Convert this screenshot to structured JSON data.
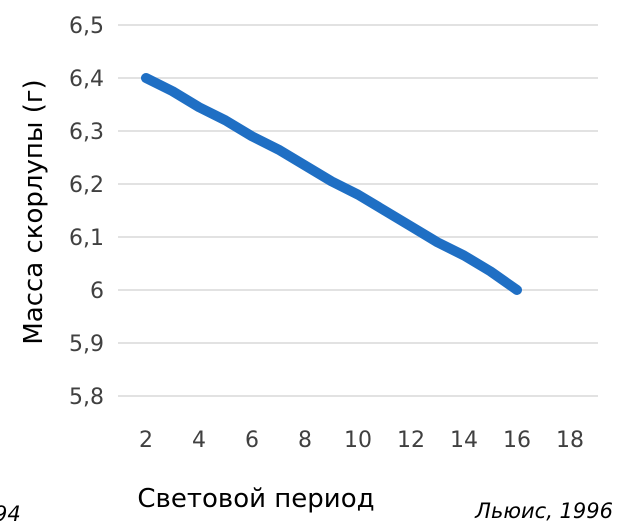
{
  "chart_data": {
    "type": "line",
    "title": "",
    "xlabel": "Световой период",
    "ylabel": "Масса скорлупы (г)",
    "x_ticks": [
      "2",
      "4",
      "6",
      "8",
      "10",
      "12",
      "14",
      "16",
      "18"
    ],
    "y_ticks": [
      "5,8",
      "5,9",
      "6",
      "6,1",
      "6,2",
      "6,3",
      "6,4",
      "6,5"
    ],
    "xlim": [
      2,
      18
    ],
    "ylim": [
      5.8,
      6.5
    ],
    "grid": "horizontal",
    "legend": "none",
    "series": [
      {
        "color": "#1f6fc4",
        "x": [
          2,
          3,
          4,
          5,
          6,
          7,
          8,
          9,
          10,
          11,
          12,
          13,
          14,
          15,
          16
        ],
        "y": [
          6.4,
          6.375,
          6.345,
          6.32,
          6.29,
          6.265,
          6.235,
          6.205,
          6.18,
          6.15,
          6.12,
          6.09,
          6.065,
          6.035,
          6.0
        ]
      }
    ]
  },
  "notes": {
    "left": "94",
    "right": "Льюис, 1996"
  }
}
